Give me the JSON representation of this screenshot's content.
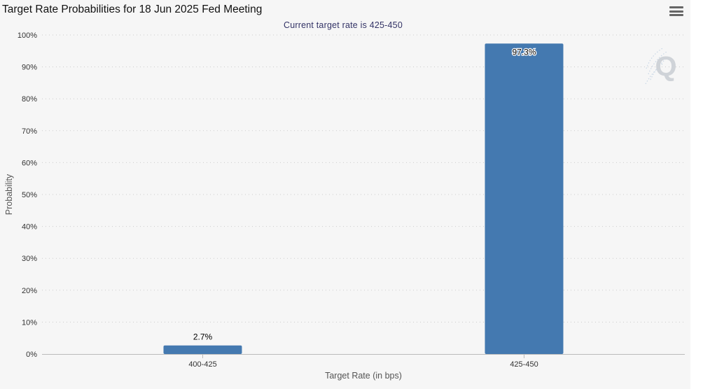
{
  "header": {
    "title": "Target Rate Probabilities for 18 Jun 2025 Fed Meeting",
    "menu_icon": "hamburger-menu-icon"
  },
  "watermark": {
    "icon": "q-logo-icon",
    "letter": "Q"
  },
  "chart_data": {
    "type": "bar",
    "title": "Target Rate Probabilities for 18 Jun 2025 Fed Meeting",
    "subtitle": "Current target rate is 425-450",
    "xlabel": "Target Rate (in bps)",
    "ylabel": "Probability",
    "categories": [
      "400-425",
      "425-450"
    ],
    "values": [
      2.7,
      97.3
    ],
    "data_labels": [
      "2.7%",
      "97.3%"
    ],
    "ylim": [
      0,
      100
    ],
    "yticks": [
      0,
      10,
      20,
      30,
      40,
      50,
      60,
      70,
      80,
      90,
      100
    ],
    "ytick_labels": [
      "0%",
      "10%",
      "20%",
      "30%",
      "40%",
      "50%",
      "60%",
      "70%",
      "80%",
      "90%",
      "100%"
    ],
    "bar_color": "#4479b0",
    "grid": "horizontal-dotted",
    "legend": "none"
  }
}
